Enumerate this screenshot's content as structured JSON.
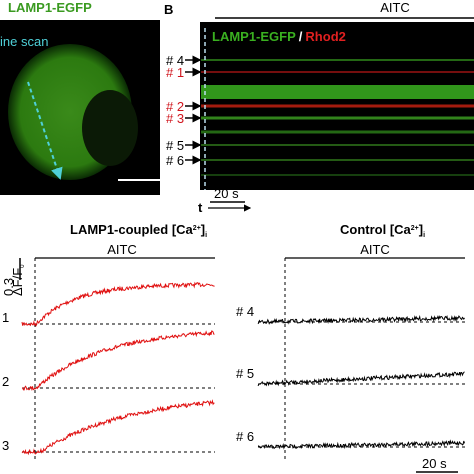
{
  "panel_a": {
    "title": "LAMP1-EGFP",
    "line_scan": "ine scan"
  },
  "panel_b": {
    "letter": "B",
    "stimulus": "AITC",
    "legend": {
      "green": "LAMP1-EGFP",
      "separator": "/",
      "red": "Rhod2"
    },
    "rois": [
      {
        "label": "# 4",
        "color": "#000000"
      },
      {
        "label": "# 1",
        "color": "#d0141c"
      },
      {
        "label": "# 2",
        "color": "#d0141c"
      },
      {
        "label": "# 3",
        "color": "#d0141c"
      },
      {
        "label": "# 5",
        "color": "#000000"
      },
      {
        "label": "# 6",
        "color": "#000000"
      }
    ],
    "time_bar": "20 s",
    "time_axis": "t"
  },
  "panel_c": {
    "left": {
      "title": {
        "text": "LAMP1-coupled [Ca",
        "sup": "2+",
        "close": "]",
        "sub": "i"
      },
      "stimulus": "AITC",
      "scale": {
        "amount": "0.3",
        "unit": "ΔF/F",
        "sub": "0"
      },
      "trace_color": "#e01010",
      "traces": [
        "1",
        "2",
        "3"
      ]
    },
    "right": {
      "title": {
        "text": "Control [Ca",
        "sup": "2+",
        "close": "]",
        "sub": "i"
      },
      "stimulus": "AITC",
      "trace_color": "#000000",
      "traces": [
        "# 4",
        "# 5",
        "# 6"
      ],
      "time_bar": "20 s"
    }
  }
}
